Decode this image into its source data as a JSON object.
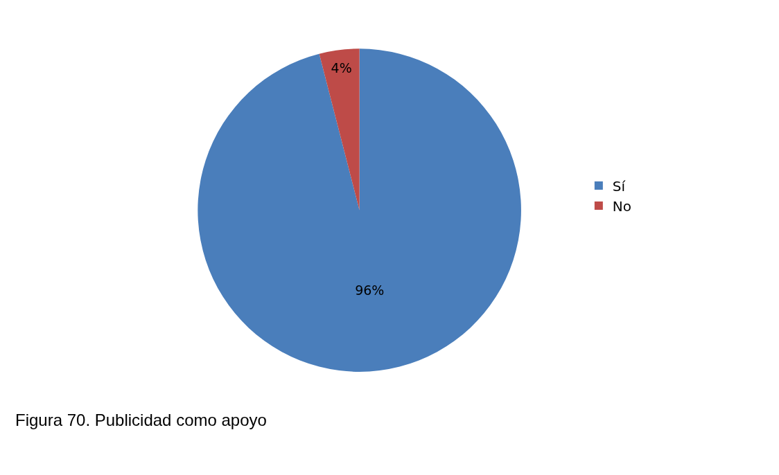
{
  "chart_data": {
    "type": "pie",
    "categories": [
      "Sí",
      "No"
    ],
    "values": [
      96,
      4
    ],
    "colors": [
      "#4a7ebb",
      "#be4b48"
    ],
    "value_labels": [
      "96%",
      "4%"
    ],
    "legend": "right",
    "annotations": [
      "Figura 70. Publicidad como apoyo"
    ]
  }
}
